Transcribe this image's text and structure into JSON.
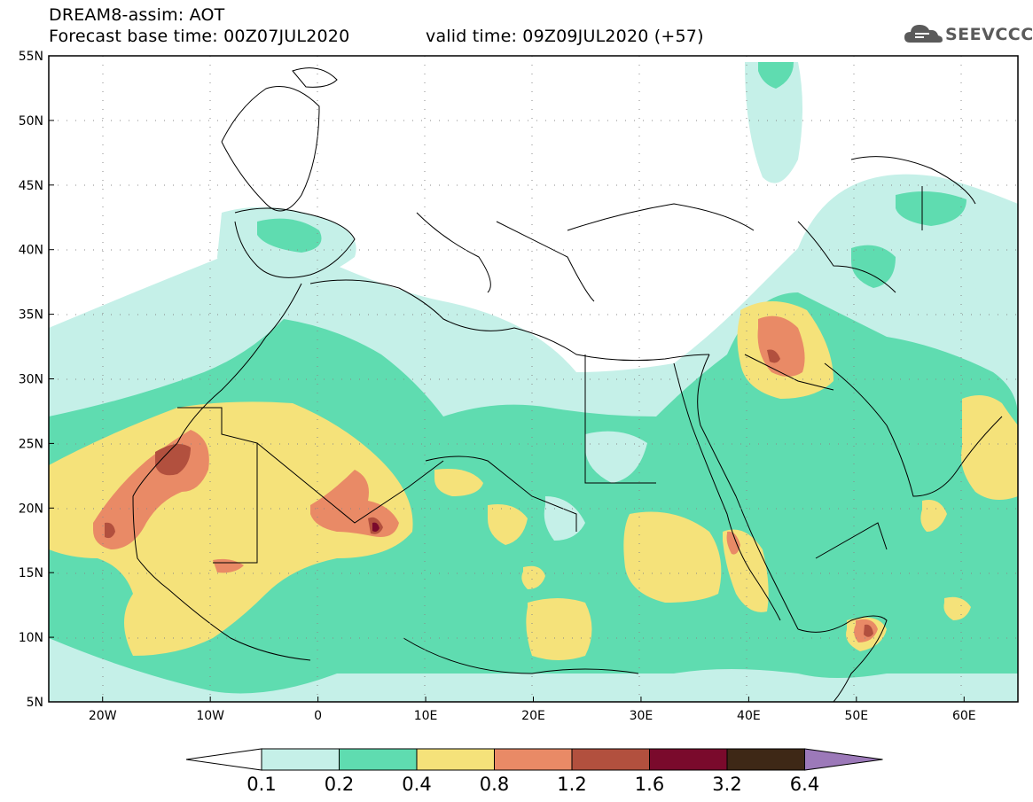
{
  "header": {
    "title_line1": "DREAM8-assim: AOT",
    "title_line2a": "Forecast base time: 00Z07JUL2020",
    "title_line2b": "valid time: 09Z09JUL2020 (+57)",
    "logo_text": "SEEVCCC"
  },
  "map": {
    "lat_labels": [
      "55N",
      "50N",
      "45N",
      "40N",
      "35N",
      "30N",
      "25N",
      "20N",
      "15N",
      "10N",
      "5N"
    ],
    "lon_labels": [
      "20W",
      "10W",
      "0",
      "10E",
      "20E",
      "30E",
      "40E",
      "50E",
      "60E"
    ],
    "extent": {
      "lon_min": -25,
      "lon_max": 65,
      "lat_min": 5,
      "lat_max": 55
    }
  },
  "legend": {
    "levels": [
      "0.1",
      "0.2",
      "0.4",
      "0.8",
      "1.2",
      "1.6",
      "3.2",
      "6.4"
    ],
    "colors": [
      "#ffffff",
      "#c5f0e8",
      "#5fdcb0",
      "#f5e27a",
      "#e98a66",
      "#b2503e",
      "#7a0a2c",
      "#3e2816",
      "#9c79b9"
    ]
  },
  "colors": {
    "c1": "#c5f0e8",
    "c2": "#5fdcb0",
    "c3": "#f5e27a",
    "c4": "#e98a66",
    "c5": "#b2503e",
    "c6": "#7a0a2c"
  }
}
